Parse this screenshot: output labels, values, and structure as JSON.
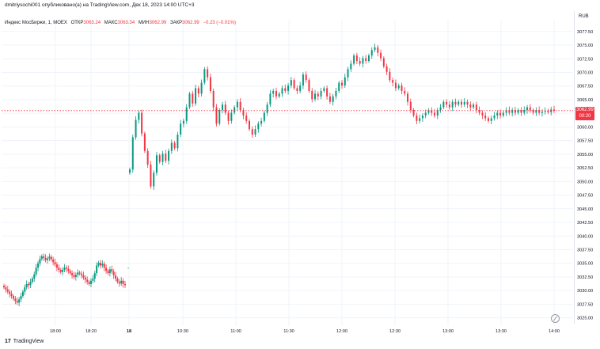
{
  "header": {
    "published_by": "dmitriysochi001 опубликовано(а) на TradingView.com, Дек 18, 2023 14:00 UTC+3"
  },
  "legend": {
    "symbol": "Индекс МосБиржи, 1, MOEX",
    "open_label": "ОТКР",
    "open_value": "3063.24",
    "high_label": "МАКС",
    "high_value": "3063.34",
    "low_label": "МИН",
    "low_value": "3062.99",
    "close_label": "ЗАКР",
    "close_value": "3062.99",
    "change": "−0.23 (−0.01%)"
  },
  "axis": {
    "currency": "RUB"
  },
  "price_label": {
    "price": "3062.99",
    "countdown": "00:20"
  },
  "footer": {
    "brand": "TradingView"
  },
  "colors": {
    "up": "#089981",
    "down": "#f23645",
    "price_line": "#f23645",
    "grid": "#f0f3fa"
  },
  "chart_data": {
    "type": "candlestick",
    "ylabels": [
      "3077.50",
      "3075.00",
      "3072.50",
      "3070.00",
      "3067.50",
      "3065.00",
      "3062.50",
      "3060.00",
      "3057.50",
      "3055.00",
      "3052.50",
      "3050.00",
      "3047.50",
      "3045.00",
      "3042.50",
      "3040.00",
      "3037.50",
      "3035.00",
      "3032.50",
      "3030.00",
      "3027.50",
      "3025.00"
    ],
    "xlabels": [
      "18:00",
      "18:20",
      "18",
      "10:30",
      "11:00",
      "11:30",
      "12:00",
      "12:30",
      "13:00",
      "13:30",
      "14:00"
    ],
    "ylim": [
      3023.5,
      3079.5
    ],
    "last_price": 3062.99,
    "previous_session": [
      3030.6,
      3030.2,
      3029.8,
      3029.4,
      3029.0,
      3028.5,
      3028.1,
      3027.8,
      3028.4,
      3029.0,
      3029.8,
      3030.6,
      3031.2,
      3031.0,
      3031.6,
      3032.2,
      3033.0,
      3034.2,
      3035.0,
      3035.8,
      3036.3,
      3036.0,
      3035.6,
      3035.9,
      3036.2,
      3035.7,
      3035.2,
      3034.8,
      3034.2,
      3033.8,
      3033.4,
      3033.8,
      3034.2,
      3034.0,
      3033.6,
      3033.2,
      3032.8,
      3032.5,
      3032.9,
      3033.3,
      3033.1,
      3032.8,
      3032.4,
      3032.0,
      3031.6,
      3031.2,
      3031.8,
      3032.2,
      3033.2,
      3034.6,
      3035.1,
      3034.6,
      3034.9,
      3034.2,
      3033.6,
      3033.2,
      3033.9,
      3033.5,
      3032.8,
      3032.2,
      3031.6,
      3031.3,
      3031.8,
      3031.2,
      3031.0
    ],
    "current_session": [
      3052.2,
      3058.1,
      3061.3,
      3062.6,
      3058.8,
      3055.6,
      3053.1,
      3049.1,
      3051.6,
      3054.8,
      3053.6,
      3055.1,
      3053.8,
      3055.6,
      3057.1,
      3056.1,
      3058.6,
      3060.6,
      3061.1,
      3063.6,
      3066.1,
      3064.3,
      3067.1,
      3066.1,
      3068.1,
      3070.6,
      3069.1,
      3066.6,
      3063.6,
      3060.6,
      3063.1,
      3064.1,
      3062.6,
      3061.1,
      3062.6,
      3063.6,
      3064.6,
      3063.1,
      3062.1,
      3061.1,
      3059.6,
      3058.6,
      3059.6,
      3060.6,
      3061.1,
      3062.6,
      3064.1,
      3066.1,
      3066.6,
      3065.6,
      3066.1,
      3067.1,
      3066.6,
      3067.6,
      3068.6,
      3067.1,
      3066.6,
      3067.6,
      3069.6,
      3068.6,
      3066.6,
      3065.1,
      3066.1,
      3065.6,
      3066.6,
      3067.1,
      3065.6,
      3064.6,
      3065.6,
      3066.6,
      3068.1,
      3067.6,
      3069.1,
      3070.6,
      3071.6,
      3073.1,
      3072.1,
      3071.6,
      3072.6,
      3072.1,
      3073.1,
      3074.1,
      3074.6,
      3073.6,
      3072.6,
      3071.1,
      3070.1,
      3068.6,
      3068.1,
      3067.1,
      3067.6,
      3066.6,
      3066.1,
      3064.6,
      3063.1,
      3062.1,
      3061.1,
      3061.6,
      3062.1,
      3062.6,
      3063.1,
      3062.6,
      3062.1,
      3063.1,
      3063.6,
      3064.6,
      3064.1,
      3063.6,
      3064.6,
      3064.1,
      3064.6,
      3064.1,
      3064.6,
      3064.1,
      3063.6,
      3064.1,
      3063.1,
      3062.6,
      3062.1,
      3061.6,
      3061.1,
      3061.6,
      3062.1,
      3062.6,
      3062.1,
      3062.6,
      3063.1,
      3062.6,
      3063.1,
      3062.6,
      3063.1,
      3062.6,
      3063.1,
      3063.6,
      3063.1,
      3062.6,
      3063.1,
      3062.6,
      3062.8,
      3063.0,
      3062.7,
      3063.2,
      3062.99
    ]
  }
}
